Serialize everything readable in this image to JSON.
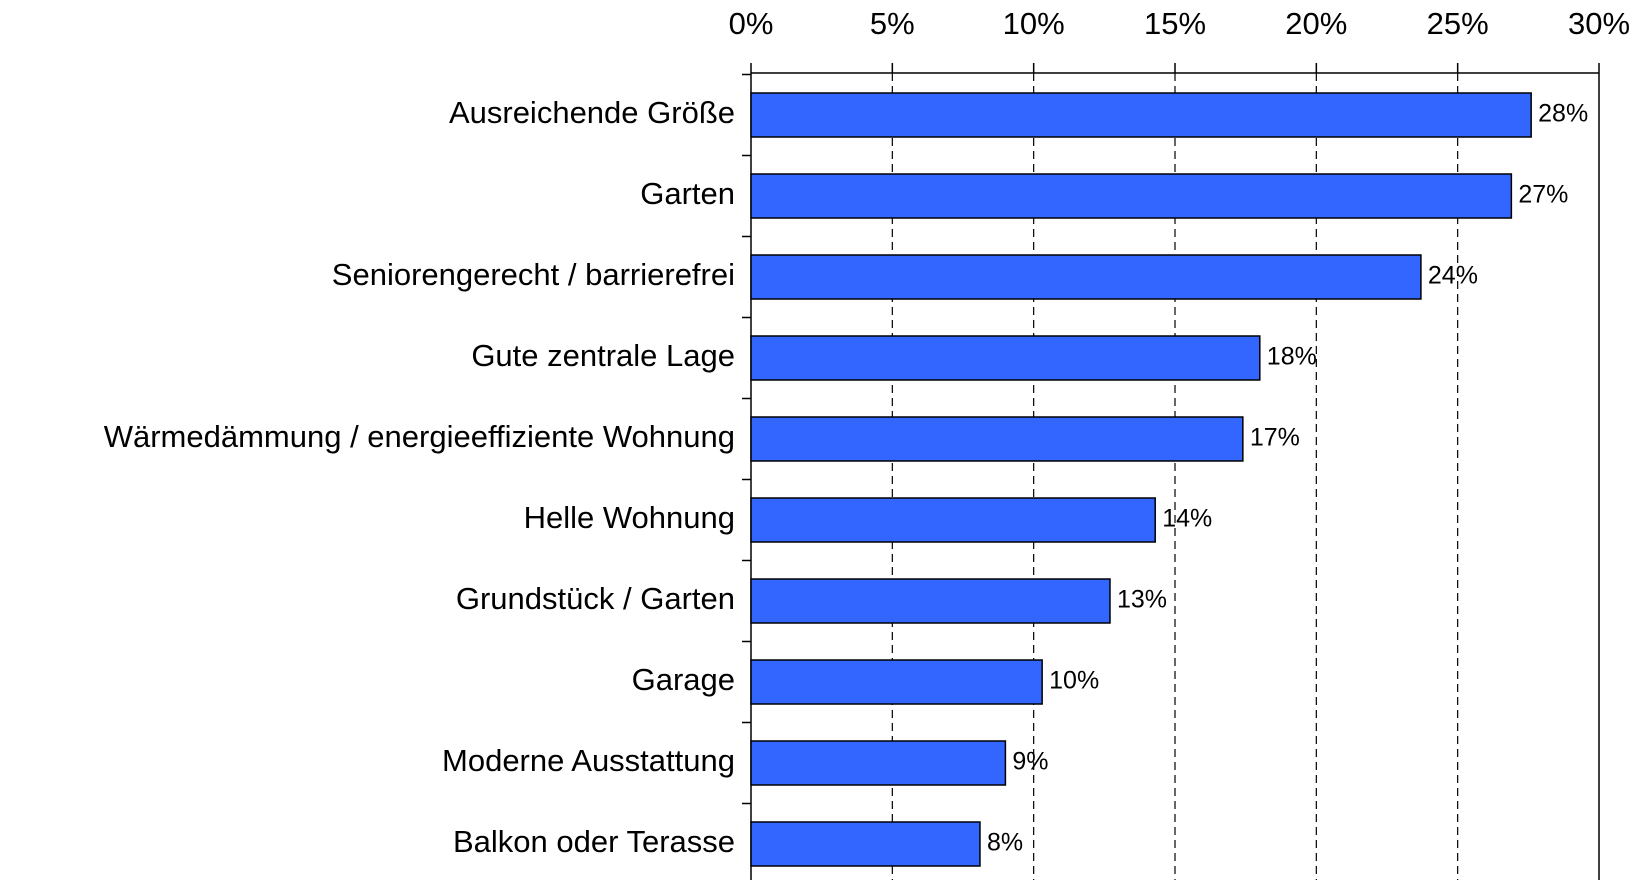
{
  "chart_data": {
    "type": "bar",
    "orientation": "horizontal",
    "categories": [
      "Ausreichende Größe",
      "Garten",
      "Seniorengerecht / barrierefrei",
      "Gute zentrale Lage",
      "Wärmedämmung / energieeffiziente Wohnung",
      "Helle Wohnung",
      "Grundstück / Garten",
      "Garage",
      "Moderne Ausstattung",
      "Balkon oder Terasse"
    ],
    "values": [
      27.6,
      26.9,
      23.7,
      18.0,
      17.4,
      14.3,
      12.7,
      10.3,
      9.0,
      8.1
    ],
    "value_labels": [
      "28%",
      "27%",
      "24%",
      "18%",
      "17%",
      "14%",
      "13%",
      "10%",
      "9%",
      "8%"
    ],
    "color": "#3366ff",
    "xlim": [
      0,
      30
    ],
    "xticks": [
      {
        "value": 0,
        "label": "0%"
      },
      {
        "value": 5,
        "label": "5%"
      },
      {
        "value": 10,
        "label": "10%"
      },
      {
        "value": 15,
        "label": "15%"
      },
      {
        "value": 20,
        "label": "20%"
      },
      {
        "value": 25,
        "label": "25%"
      },
      {
        "value": 30,
        "label": "30%"
      }
    ],
    "grid": true
  }
}
